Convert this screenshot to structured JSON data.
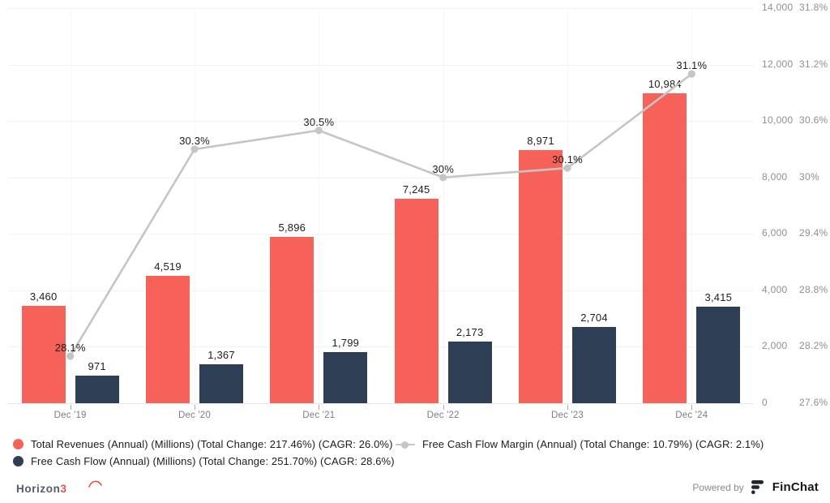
{
  "chart_data": {
    "type": "bar",
    "note": "dual-axis combo: two bar series on value axis, one line series on percent axis",
    "categories": [
      "Dec '19",
      "Dec '20",
      "Dec '21",
      "Dec '22",
      "Dec '23",
      "Dec '24"
    ],
    "series": [
      {
        "name": "Total Revenues (Annual) (Millions) (Total Change: 217.46%) (CAGR: 26.0%)",
        "kind": "bar",
        "axis": "value",
        "color": "#f6615a",
        "values": [
          3460,
          4519,
          5896,
          7245,
          8971,
          10984
        ],
        "value_labels": [
          "3,460",
          "4,519",
          "5,896",
          "7,245",
          "8,971",
          "10,984"
        ]
      },
      {
        "name": "Free Cash Flow (Annual) (Millions) (Total Change: 251.70%) (CAGR: 28.6%)",
        "kind": "bar",
        "axis": "value",
        "color": "#2e3f55",
        "values": [
          971,
          1367,
          1799,
          2173,
          2704,
          3415
        ],
        "value_labels": [
          "971",
          "1,367",
          "1,799",
          "2,173",
          "2,704",
          "3,415"
        ]
      },
      {
        "name": "Free Cash Flow Margin (Annual) (Total Change: 10.79%) (CAGR: 2.1%)",
        "kind": "line",
        "axis": "percent",
        "color": "#c5c5c5",
        "values": [
          28.1,
          30.3,
          30.5,
          30.0,
          30.1,
          31.1
        ],
        "value_labels": [
          "28.1%",
          "30.3%",
          "30.5%",
          "30%",
          "30.1%",
          "31.1%"
        ]
      }
    ],
    "value_axis": {
      "position": "right",
      "min": 0,
      "max": 14000,
      "tick_labels": [
        "0",
        "2,000",
        "4,000",
        "6,000",
        "8,000",
        "10,000",
        "12,000",
        "14,000"
      ]
    },
    "percent_axis": {
      "position": "far-right",
      "min": 27.6,
      "max": 31.8,
      "tick_labels": [
        "27.6%",
        "28.2%",
        "28.8%",
        "29.4%",
        "30%",
        "30.6%",
        "31.2%",
        "31.8%"
      ]
    },
    "grid": {
      "horizontal": true,
      "vertical": true
    },
    "legend_position": "bottom",
    "title": "",
    "xlabel": "",
    "ylabel": ""
  },
  "footer": {
    "brand_text": "Horizon",
    "brand_digit": "3",
    "powered_by": "Powered by",
    "finchat": "FinChat"
  },
  "colors": {
    "revenue_bar": "#f6615a",
    "fcf_bar": "#2e3f55",
    "margin_line": "#c5c5c5",
    "background": "#ffffff",
    "gridline": "#f3f3f3",
    "axis_text": "#8e8e96",
    "data_label": "#1c1d20",
    "brand_red": "#e4504b"
  }
}
